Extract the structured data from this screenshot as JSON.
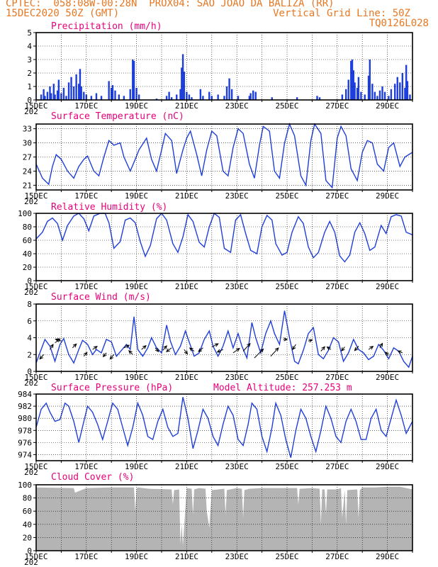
{
  "header": {
    "line1_left": "CPTEC:  058:08W-00:28N  PROX04: SAO JOAO DA BALIZA (RR)",
    "line2_left": "15DEC2020 50Z (GMT)",
    "line2_right": "Vertical Grid Line: 50Z",
    "line3_right": "TQ0126L028"
  },
  "colors": {
    "header": "#e87722",
    "panel_title": "#e8007a",
    "series": "#1f3fdb",
    "cloud": "#b4b4b4"
  },
  "x_tick_labels": [
    "15DEC",
    "17DEC",
    "19DEC",
    "21DEC",
    "23DEC",
    "25DEC",
    "27DEC",
    "29DEC"
  ],
  "x_tick_days": [
    0,
    2,
    4,
    6,
    8,
    10,
    12,
    14
  ],
  "year_label": "202",
  "chart_data": [
    {
      "id": "precip",
      "type": "bar",
      "title": "Precipitation (mm/h)",
      "ylim": [
        0,
        5
      ],
      "yticks": [
        0,
        1,
        2,
        3,
        4,
        5
      ],
      "xlim": [
        0,
        15
      ],
      "grid": true,
      "points": [
        [
          0.2,
          0.4
        ],
        [
          0.3,
          0.8
        ],
        [
          0.35,
          0.3
        ],
        [
          0.45,
          0.6
        ],
        [
          0.55,
          1.0
        ],
        [
          0.6,
          0.5
        ],
        [
          0.7,
          1.2
        ],
        [
          0.75,
          0.4
        ],
        [
          0.85,
          0.7
        ],
        [
          0.9,
          1.5
        ],
        [
          1.0,
          0.5
        ],
        [
          1.1,
          0.9
        ],
        [
          1.2,
          0.3
        ],
        [
          1.3,
          1.3
        ],
        [
          1.4,
          1.7
        ],
        [
          1.5,
          1.0
        ],
        [
          1.6,
          1.9
        ],
        [
          1.7,
          1.2
        ],
        [
          1.75,
          2.3
        ],
        [
          1.8,
          1.0
        ],
        [
          1.9,
          0.6
        ],
        [
          2.0,
          0.4
        ],
        [
          2.2,
          0.3
        ],
        [
          2.4,
          0.5
        ],
        [
          2.6,
          0.3
        ],
        [
          2.9,
          1.4
        ],
        [
          3.0,
          0.9
        ],
        [
          3.05,
          1.1
        ],
        [
          3.15,
          0.7
        ],
        [
          3.3,
          0.4
        ],
        [
          3.5,
          0.3
        ],
        [
          3.75,
          0.8
        ],
        [
          3.85,
          3.0
        ],
        [
          3.9,
          2.9
        ],
        [
          4.0,
          0.9
        ],
        [
          4.1,
          0.4
        ],
        [
          4.8,
          0.1
        ],
        [
          5.2,
          0.3
        ],
        [
          5.3,
          0.6
        ],
        [
          5.4,
          0.2
        ],
        [
          5.6,
          0.4
        ],
        [
          5.75,
          0.8
        ],
        [
          5.8,
          2.4
        ],
        [
          5.85,
          3.4
        ],
        [
          5.9,
          2.1
        ],
        [
          6.0,
          0.6
        ],
        [
          6.1,
          0.4
        ],
        [
          6.2,
          0.2
        ],
        [
          6.55,
          0.8
        ],
        [
          6.65,
          0.3
        ],
        [
          6.9,
          0.6
        ],
        [
          7.0,
          0.3
        ],
        [
          7.25,
          0.4
        ],
        [
          7.5,
          0.3
        ],
        [
          7.6,
          1.0
        ],
        [
          7.7,
          1.6
        ],
        [
          7.8,
          0.8
        ],
        [
          8.05,
          0.3
        ],
        [
          8.5,
          0.3
        ],
        [
          8.55,
          0.5
        ],
        [
          8.65,
          0.7
        ],
        [
          8.75,
          0.6
        ],
        [
          9.4,
          0.2
        ],
        [
          10.4,
          0.2
        ],
        [
          11.2,
          0.3
        ],
        [
          11.3,
          0.2
        ],
        [
          12.2,
          0.4
        ],
        [
          12.35,
          0.8
        ],
        [
          12.45,
          1.5
        ],
        [
          12.55,
          2.9
        ],
        [
          12.6,
          3.0
        ],
        [
          12.65,
          2.2
        ],
        [
          12.7,
          1.3
        ],
        [
          12.8,
          0.9
        ],
        [
          12.85,
          1.7
        ],
        [
          12.95,
          0.6
        ],
        [
          13.1,
          0.4
        ],
        [
          13.25,
          1.8
        ],
        [
          13.3,
          3.0
        ],
        [
          13.4,
          1.2
        ],
        [
          13.5,
          0.6
        ],
        [
          13.6,
          0.3
        ],
        [
          13.7,
          0.7
        ],
        [
          13.8,
          1.0
        ],
        [
          13.9,
          0.6
        ],
        [
          14.05,
          0.3
        ],
        [
          14.15,
          0.8
        ],
        [
          14.3,
          1.2
        ],
        [
          14.4,
          1.7
        ],
        [
          14.5,
          1.3
        ],
        [
          14.6,
          2.0
        ],
        [
          14.7,
          0.9
        ],
        [
          14.75,
          2.6
        ],
        [
          14.8,
          1.4
        ],
        [
          14.9,
          0.4
        ]
      ]
    },
    {
      "id": "temp",
      "type": "line",
      "title": "Surface Temperature (nC)",
      "ylim": [
        20,
        34
      ],
      "yticks": [
        21,
        24,
        27,
        30,
        33
      ],
      "xlim": [
        0,
        15
      ],
      "grid": true,
      "x": [
        0,
        0.25,
        0.5,
        0.65,
        0.8,
        1.0,
        1.25,
        1.5,
        1.7,
        1.9,
        2.05,
        2.3,
        2.5,
        2.7,
        2.9,
        3.1,
        3.35,
        3.5,
        3.75,
        3.95,
        4.1,
        4.4,
        4.6,
        4.8,
        5.0,
        5.15,
        5.4,
        5.6,
        5.85,
        6.0,
        6.15,
        6.4,
        6.6,
        6.8,
        7.0,
        7.2,
        7.45,
        7.65,
        7.85,
        8.05,
        8.25,
        8.5,
        8.7,
        8.9,
        9.05,
        9.3,
        9.5,
        9.7,
        9.9,
        10.1,
        10.3,
        10.55,
        10.75,
        10.95,
        11.1,
        11.35,
        11.55,
        11.8,
        12.0,
        12.15,
        12.35,
        12.55,
        12.8,
        13.0,
        13.2,
        13.4,
        13.6,
        13.85,
        14.05,
        14.25,
        14.5,
        14.7,
        15.0
      ],
      "values": [
        25.5,
        22.5,
        21.2,
        25.0,
        27.5,
        26.5,
        24.0,
        22.5,
        25.0,
        26.5,
        27.2,
        24.0,
        23.0,
        27.0,
        30.5,
        29.5,
        30.0,
        27.0,
        24.0,
        26.5,
        28.5,
        31.0,
        26.5,
        24.0,
        28.5,
        32.0,
        30.5,
        23.5,
        28.5,
        31.0,
        32.5,
        27.5,
        23.0,
        28.5,
        32.5,
        31.5,
        24.0,
        23.0,
        29.0,
        33.0,
        32.0,
        25.5,
        22.5,
        29.5,
        33.5,
        32.5,
        24.0,
        22.5,
        30.0,
        34.0,
        31.5,
        23.0,
        21.0,
        30.5,
        34.0,
        32.0,
        22.0,
        20.5,
        31.0,
        33.5,
        31.5,
        24.5,
        22.0,
        28.0,
        30.5,
        30.0,
        25.5,
        24.0,
        29.0,
        30.0,
        25.0,
        27.0,
        28.0
      ]
    },
    {
      "id": "rh",
      "type": "line",
      "title": "Relative Humidity (%)",
      "ylim": [
        0,
        100
      ],
      "yticks": [
        0,
        20,
        40,
        60,
        80,
        100
      ],
      "xlim": [
        0,
        15
      ],
      "grid": true,
      "x": [
        0,
        0.25,
        0.45,
        0.65,
        0.85,
        1.05,
        1.25,
        1.5,
        1.7,
        1.9,
        2.1,
        2.3,
        2.55,
        2.75,
        2.9,
        3.1,
        3.35,
        3.55,
        3.75,
        3.95,
        4.15,
        4.35,
        4.55,
        4.8,
        5.0,
        5.2,
        5.45,
        5.65,
        5.85,
        6.05,
        6.25,
        6.5,
        6.7,
        6.9,
        7.1,
        7.3,
        7.5,
        7.75,
        7.95,
        8.15,
        8.35,
        8.55,
        8.8,
        9.0,
        9.2,
        9.4,
        9.55,
        9.8,
        10.0,
        10.2,
        10.45,
        10.65,
        10.85,
        11.05,
        11.25,
        11.5,
        11.7,
        11.9,
        12.1,
        12.3,
        12.5,
        12.7,
        12.9,
        13.1,
        13.3,
        13.5,
        13.75,
        13.95,
        14.15,
        14.35,
        14.55,
        14.75,
        15.0
      ],
      "values": [
        62,
        72,
        88,
        93,
        85,
        60,
        82,
        96,
        100,
        92,
        74,
        96,
        100,
        100,
        86,
        48,
        58,
        90,
        93,
        86,
        58,
        36,
        52,
        92,
        100,
        90,
        55,
        42,
        65,
        98,
        88,
        57,
        50,
        80,
        100,
        94,
        48,
        42,
        90,
        98,
        70,
        45,
        40,
        80,
        97,
        90,
        55,
        38,
        42,
        72,
        95,
        85,
        50,
        34,
        42,
        72,
        88,
        72,
        37,
        28,
        38,
        72,
        86,
        70,
        45,
        50,
        82,
        70,
        95,
        98,
        96,
        72,
        68
      ]
    },
    {
      "id": "wind",
      "type": "line",
      "title": "Surface Wind (m/s)",
      "ylim": [
        0,
        8
      ],
      "yticks": [
        0,
        2,
        4,
        6,
        8
      ],
      "xlim": [
        0,
        15
      ],
      "grid": true,
      "x": [
        0,
        0.15,
        0.35,
        0.55,
        0.75,
        0.95,
        1.1,
        1.3,
        1.5,
        1.7,
        1.85,
        2.05,
        2.25,
        2.4,
        2.6,
        2.8,
        3.0,
        3.2,
        3.4,
        3.6,
        3.75,
        3.9,
        4.05,
        4.25,
        4.45,
        4.6,
        4.8,
        5.0,
        5.2,
        5.35,
        5.55,
        5.75,
        5.95,
        6.1,
        6.3,
        6.5,
        6.7,
        6.9,
        7.05,
        7.25,
        7.45,
        7.65,
        7.85,
        8.05,
        8.2,
        8.4,
        8.6,
        8.75,
        8.95,
        9.15,
        9.35,
        9.5,
        9.7,
        9.9,
        10.1,
        10.3,
        10.45,
        10.65,
        10.85,
        11.05,
        11.25,
        11.45,
        11.65,
        11.85,
        12.05,
        12.25,
        12.45,
        12.65,
        12.85,
        13.05,
        13.25,
        13.45,
        13.65,
        13.85,
        14.05,
        14.25,
        14.45,
        14.65,
        14.85,
        15.0
      ],
      "values": [
        1.0,
        2.2,
        3.8,
        3.0,
        1.2,
        3.2,
        3.9,
        2.0,
        1.0,
        2.6,
        3.7,
        3.2,
        2.0,
        2.6,
        2.2,
        3.8,
        3.5,
        1.8,
        2.5,
        3.2,
        2.6,
        6.5,
        2.6,
        1.8,
        2.8,
        4.0,
        2.8,
        2.2,
        5.5,
        3.6,
        2.0,
        3.0,
        4.8,
        3.5,
        1.8,
        2.2,
        3.8,
        4.8,
        3.0,
        1.8,
        3.0,
        4.8,
        2.8,
        4.5,
        3.0,
        1.6,
        5.8,
        4.0,
        2.2,
        4.5,
        6.0,
        4.5,
        3.2,
        7.2,
        4.0,
        1.2,
        0.9,
        2.5,
        4.5,
        5.2,
        2.0,
        1.5,
        2.5,
        4.0,
        3.5,
        1.2,
        2.2,
        3.8,
        2.6,
        2.2,
        1.4,
        1.8,
        3.2,
        2.5,
        1.5,
        2.8,
        2.4,
        1.2,
        0.5,
        1.8
      ]
    },
    {
      "id": "pressure",
      "type": "line",
      "title": "Surface Pressure (hPa)",
      "ylim": [
        973,
        984
      ],
      "yticks": [
        974,
        976,
        978,
        980,
        982,
        984
      ],
      "xlim": [
        0,
        15
      ],
      "grid": true,
      "x": [
        0,
        0.2,
        0.4,
        0.55,
        0.75,
        0.95,
        1.15,
        1.3,
        1.5,
        1.7,
        1.9,
        2.05,
        2.25,
        2.45,
        2.65,
        2.85,
        3.05,
        3.25,
        3.45,
        3.65,
        3.85,
        4.05,
        4.25,
        4.45,
        4.65,
        4.85,
        5.05,
        5.25,
        5.45,
        5.65,
        5.85,
        6.05,
        6.25,
        6.45,
        6.65,
        6.85,
        7.05,
        7.25,
        7.45,
        7.65,
        7.85,
        8.05,
        8.25,
        8.45,
        8.6,
        8.8,
        9.0,
        9.2,
        9.4,
        9.55,
        9.75,
        9.95,
        10.15,
        10.35,
        10.55,
        10.75,
        10.95,
        11.15,
        11.35,
        11.55,
        11.75,
        11.95,
        12.15,
        12.35,
        12.55,
        12.75,
        12.95,
        13.15,
        13.35,
        13.55,
        13.75,
        13.95,
        14.15,
        14.35,
        14.55,
        14.75,
        15.0
      ],
      "values": [
        978.5,
        981.5,
        982.5,
        981.0,
        979.5,
        979.8,
        982.5,
        982.0,
        979.5,
        976.0,
        979.5,
        982.0,
        981.0,
        979.0,
        976.5,
        979.5,
        982.5,
        981.5,
        978.5,
        975.5,
        978.5,
        982.5,
        980.5,
        977.0,
        976.5,
        979.5,
        981.5,
        978.5,
        977.0,
        977.5,
        983.5,
        980.0,
        975.0,
        978.0,
        981.5,
        980.0,
        977.0,
        975.5,
        979.0,
        982.0,
        980.5,
        976.5,
        975.5,
        979.0,
        982.5,
        981.5,
        977.0,
        974.5,
        978.5,
        982.5,
        980.5,
        976.5,
        973.5,
        978.0,
        981.5,
        980.0,
        977.0,
        974.5,
        978.0,
        982.0,
        980.0,
        977.0,
        976.0,
        979.5,
        981.5,
        979.5,
        976.5,
        976.5,
        980.0,
        981.5,
        978.0,
        977.0,
        980.0,
        983.0,
        980.5,
        977.5,
        979.5
      ]
    },
    {
      "id": "cloud",
      "type": "area",
      "title": "Cloud Cover (%)",
      "ylim": [
        0,
        100
      ],
      "yticks": [
        0,
        20,
        40,
        60,
        80,
        100
      ],
      "xlim": [
        0,
        15
      ],
      "grid": true,
      "x": [
        0,
        1.5,
        1.55,
        2.0,
        3.0,
        3.9,
        3.95,
        4.0,
        4.05,
        4.5,
        5.4,
        5.45,
        5.5,
        5.7,
        5.75,
        5.8,
        5.85,
        6.0,
        6.2,
        6.25,
        6.3,
        6.5,
        6.75,
        6.8,
        6.9,
        7.0,
        7.5,
        7.55,
        7.6,
        8.0,
        8.2,
        8.25,
        8.3,
        8.5,
        9.0,
        9.5,
        10.0,
        10.4,
        10.45,
        10.5,
        11.0,
        11.3,
        11.35,
        11.4,
        11.5,
        11.55,
        11.6,
        12.0,
        12.15,
        12.2,
        12.3,
        12.35,
        12.4,
        12.8,
        12.85,
        12.9,
        13.0,
        13.5,
        14.0,
        14.5,
        15.0
      ],
      "values": [
        96,
        95,
        88,
        95,
        96,
        96,
        60,
        94,
        96,
        94,
        93,
        70,
        92,
        93,
        10,
        40,
        8,
        95,
        94,
        55,
        93,
        95,
        94,
        60,
        35,
        92,
        94,
        55,
        92,
        95,
        94,
        50,
        92,
        94,
        95,
        95,
        95,
        95,
        70,
        94,
        95,
        94,
        40,
        93,
        93,
        55,
        93,
        93,
        95,
        50,
        92,
        40,
        92,
        93,
        50,
        92,
        96,
        96,
        97,
        97,
        93
      ]
    }
  ],
  "wind_arrows": [
    [
      0.3,
      2.0,
      -0.6,
      -0.7
    ],
    [
      0.55,
      2.6,
      0.5,
      0.8
    ],
    [
      0.75,
      3.4,
      0.8,
      0.6
    ],
    [
      1.0,
      3.6,
      -0.9,
      0.3
    ],
    [
      1.45,
      2.8,
      0.6,
      0.6
    ],
    [
      1.9,
      1.8,
      0.5,
      0.6
    ],
    [
      2.25,
      2.6,
      0.7,
      0.5
    ],
    [
      2.8,
      2.2,
      -0.5,
      -0.6
    ],
    [
      3.1,
      2.0,
      -0.6,
      -0.7
    ],
    [
      3.5,
      2.8,
      0.8,
      0.4
    ],
    [
      3.85,
      2.0,
      -0.6,
      0.6
    ],
    [
      4.2,
      2.6,
      0.7,
      0.6
    ],
    [
      4.75,
      2.8,
      0.5,
      -0.6
    ],
    [
      5.05,
      2.5,
      0.6,
      0.7
    ],
    [
      5.4,
      2.8,
      -0.8,
      -0.6
    ],
    [
      5.9,
      2.6,
      0.5,
      -0.7
    ],
    [
      6.3,
      2.4,
      -0.7,
      0.5
    ],
    [
      6.65,
      2.8,
      -0.7,
      -0.6
    ],
    [
      7.0,
      2.9,
      1.0,
      0.5
    ],
    [
      7.45,
      2.6,
      -0.9,
      -0.4
    ],
    [
      7.85,
      2.2,
      1.0,
      0.7
    ],
    [
      8.25,
      2.4,
      1.1,
      1.2
    ],
    [
      8.7,
      1.6,
      1.4,
      1.4
    ],
    [
      9.35,
      1.8,
      1.2,
      1.3
    ],
    [
      9.85,
      3.8,
      0.6,
      0.0
    ],
    [
      10.35,
      3.2,
      -0.5,
      -0.8
    ],
    [
      10.85,
      3.6,
      0.6,
      0.2
    ],
    [
      11.35,
      2.4,
      0.6,
      0.7
    ],
    [
      11.75,
      2.6,
      -0.6,
      0.4
    ],
    [
      12.3,
      2.9,
      -0.5,
      -0.6
    ],
    [
      12.85,
      3.0,
      -0.6,
      -0.7
    ],
    [
      13.25,
      2.6,
      0.7,
      0.5
    ],
    [
      13.7,
      2.8,
      0.4,
      0.7
    ],
    [
      14.05,
      1.9,
      -0.5,
      0.5
    ],
    [
      14.6,
      2.2,
      -0.7,
      0.3
    ]
  ],
  "model_altitude_label": "Model Altitude: 257.253 m"
}
